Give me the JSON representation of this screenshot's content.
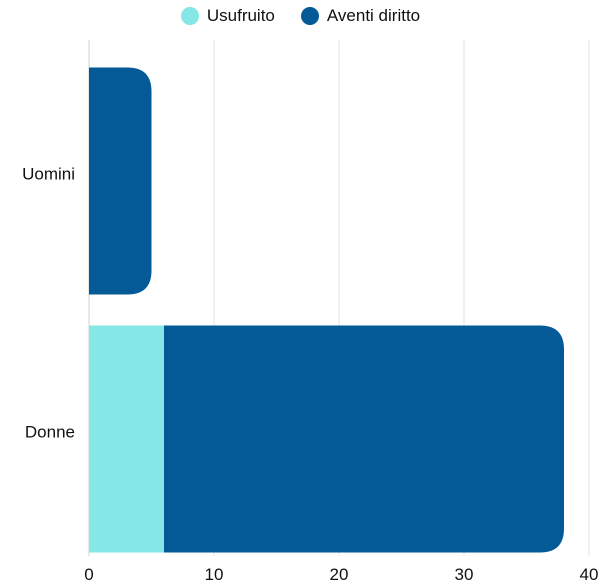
{
  "chart_data": {
    "type": "bar",
    "orientation": "horizontal",
    "stacked": true,
    "categories": [
      "Uomini",
      "Donne"
    ],
    "series": [
      {
        "name": "Usufruito",
        "values": [
          0,
          6
        ],
        "color": "#86e8e6"
      },
      {
        "name": "Aventi diritto",
        "values": [
          5,
          32
        ],
        "color": "#035a96"
      }
    ],
    "xlim": [
      0,
      40
    ],
    "xticks": [
      0,
      10,
      20,
      30,
      40
    ],
    "grid": true,
    "legend_position": "top-center",
    "title": "",
    "xlabel": "",
    "ylabel": ""
  }
}
